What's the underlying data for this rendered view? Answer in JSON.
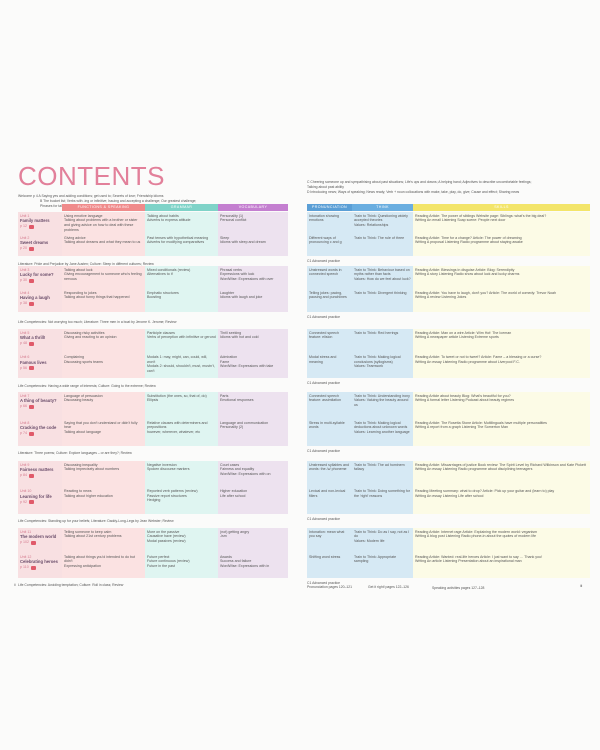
{
  "title": "CONTENTS",
  "intro_left": [
    "Welcome p 4   A Saying yes and adding conditions; get used to; Secrets of love; Friendship idioms",
    "B The bucket list; Verbs with -ing or infinitive; Issuing and accepting a challenge; Our greatest challenge;",
    "Phrases for talking about the future"
  ],
  "intro_right": [
    "C Cheering someone up and sympathising about past situations; Life's ups and downs; A helping hand; Adjectives to describe uncomfortable feelings;",
    "Talking about past ability",
    "D Introducing news; Ways of speaking; News ready; Verb + noun collocations with make, take, play, do, give; Cause and effect; Sharing news"
  ],
  "headers": {
    "functions": "FUNCTIONS & SPEAKING",
    "grammar": "GRAMMAR",
    "vocabulary": "VOCABULARY",
    "pronunciation": "PRONUNCIATION",
    "theme": "THINK",
    "skills": "SKILLS"
  },
  "colors": {
    "title": "#e2809a",
    "functions": "#f08b8b",
    "grammar": "#7fd3c8",
    "vocabulary": "#c47fd0",
    "pronunciation": "#5b9fd6",
    "theme": "#5b9fd6",
    "skills": "#f3e56a"
  },
  "groups": [
    {
      "units": [
        {
          "label": "Unit 1",
          "name": "Family matters",
          "page": "p 12",
          "functions": [
            "Using emotive language",
            "Talking about problems with a brother or sister and giving advice on how to deal with these problems"
          ],
          "grammar": [
            "Talking about habits",
            "Adverbs to express attitude"
          ],
          "vocabulary": [
            "Personality (1)",
            "Personal conflict"
          ],
          "pronunciation": "Intonation showing emotions",
          "theme": [
            "Train to Think: Questioning widely accepted theories",
            "Values: Relationships"
          ],
          "skills": [
            "Reading Article: The power of siblings   Website page: Siblings: what's the big deal?",
            "Writing An email   Listening Soap scene: People next door"
          ]
        },
        {
          "label": "Unit 2",
          "name": "Sweet dreams",
          "page": "p 20",
          "functions": [
            "Giving advice",
            "Talking about dreams and what they mean to us"
          ],
          "grammar": [
            "Past tenses with hypothetical meaning",
            "Adverbs for modifying comparatives"
          ],
          "vocabulary": [
            "Sleep",
            "Idioms with sleep and dream"
          ],
          "pronunciation": "Different ways of pronouncing c and g",
          "theme": [
            "Train to Think: The rule of three"
          ],
          "skills": [
            "Reading Article: Time for a change?   Article: The power of dreaming",
            "Writing A proposal   Listening Radio programme about staying awake"
          ]
        }
      ],
      "line": "Literature: Pride and Prejudice by Jane Austen; Culture: Sleep in different cultures; Review"
    },
    {
      "units": [
        {
          "label": "Unit 3",
          "name": "Lucky for some?",
          "page": "p 30",
          "functions": [
            "Talking about luck",
            "Giving encouragement to someone who's feeling nervous"
          ],
          "grammar": [
            "Mixed conditionals (review)",
            "Alternatives to if"
          ],
          "vocabulary": [
            "Phrasal verbs",
            "Expressions with luck",
            "WordWise: Expressions with over"
          ],
          "pronunciation": "Unstressed words in connected speech",
          "theme": [
            "Train to Think: Behaviour based on myths rather than facts",
            "Values: How do we feel about luck?"
          ],
          "skills": [
            "Reading Article: Blessings in disguise   Article: Blog: Serendipity",
            "Writing A story   Listening Radio show about luck and lucky charms"
          ]
        },
        {
          "label": "Unit 4",
          "name": "Having a laugh",
          "page": "p 38",
          "functions": [
            "Responding to jokes",
            "Talking about funny things that happened"
          ],
          "grammar": [
            "Emphatic structures",
            "Boosting"
          ],
          "vocabulary": [
            "Laughter",
            "Idioms with laugh and joke"
          ],
          "pronunciation": "Telling jokes: pacing, pausing and punchlines",
          "theme": [
            "Train to Think: Divergent thinking"
          ],
          "skills": [
            "Reading Article: You have to laugh, don't you?   Article: The world of comedy: Trevor Noah",
            "Writing A review   Listening Jokes"
          ]
        }
      ],
      "line": "Life Competencies: Not worrying too much; Literature: Three men in a boat by Jerome K. Jerome; Review"
    },
    {
      "units": [
        {
          "label": "Unit 5",
          "name": "What a thrill!",
          "page": "p 48",
          "functions": [
            "Discussing risky activities",
            "Giving and reacting to an opinion"
          ],
          "grammar": [
            "Participle clauses",
            "Verbs of perception with infinitive or gerund"
          ],
          "vocabulary": [
            "Thrill seeking",
            "Idioms with hot and cold"
          ],
          "pronunciation": "Connected speech feature: elision",
          "theme": [
            "Train to Think: Red herrings"
          ],
          "skills": [
            "Reading Article: Man on a wire   Article: Wim Hof: The Iceman",
            "Writing A newspaper article   Listening Extreme sports"
          ]
        },
        {
          "label": "Unit 6",
          "name": "Famous lives",
          "page": "p 56",
          "functions": [
            "Complaining",
            "Discussing sports teams"
          ],
          "grammar": [
            "Modals 1: may, might, can, could, will, won't",
            "Modals 2: should, shouldn't, must, mustn't, can't"
          ],
          "vocabulary": [
            "Admiration",
            "Fame",
            "WordWise: Expressions with take"
          ],
          "pronunciation": "Modal stress and meaning",
          "theme": [
            "Train to Think: Making logical conclusions (syllogisms)",
            "Values: Teamwork"
          ],
          "skills": [
            "Reading Article: To tweet or not to tweet?   Article: Fame – a blessing or a curse?",
            "Writing An essay   Listening Radio programme about Liverpool F.C."
          ]
        }
      ],
      "line": "Life Competencies: Having a wide range of interests; Culture: Going to the extreme; Review"
    },
    {
      "units": [
        {
          "label": "Unit 7",
          "name": "A thing of beauty?",
          "page": "p 66",
          "functions": [
            "Language of persuasion",
            "Discussing beauty"
          ],
          "grammar": [
            "Substitution (the ones, so, that of, do)",
            "Ellipsis"
          ],
          "vocabulary": [
            "Parts",
            "Emotional responses"
          ],
          "pronunciation": "Connected speech feature: assimilation",
          "theme": [
            "Train to Think: Understanding irony",
            "Values: Valuing the beauty around us"
          ],
          "skills": [
            "Reading Article about beauty   Blog: What's beautiful for you?",
            "Writing A formal letter   Listening Podcast about beauty regimes"
          ]
        },
        {
          "label": "Unit 8",
          "name": "Cracking the code",
          "page": "p 74",
          "functions": [
            "Saying that you don't understand or didn't fully hear",
            "Talking about language"
          ],
          "grammar": [
            "Relative clauses with determiners and prepositions",
            "however, wherever, whatever, etc"
          ],
          "vocabulary": [
            "Language and communication",
            "Personality (2)"
          ],
          "pronunciation": "Stress in multi-syllable words",
          "theme": [
            "Train to Think: Making logical deductions about unknown words",
            "Values: Learning another language"
          ],
          "skills": [
            "Reading Article: The Rosetta Stone   Article: Multilinguals have multiple personalities",
            "Writing A report from a graph   Listening The Somerton Man"
          ]
        }
      ],
      "line": "Literature: Three poems; Culture: Explore languages – or are they?; Review"
    },
    {
      "units": [
        {
          "label": "Unit 9",
          "name": "Fairness matters",
          "page": "p 84",
          "functions": [
            "Discussing inequality",
            "Talking imprecisely about numbers"
          ],
          "grammar": [
            "Negative inversion",
            "Spoken discourse markers"
          ],
          "vocabulary": [
            "Court cases",
            "Fairness and equality",
            "WordWise: Expressions with on"
          ],
          "pronunciation": "Unstressed syllables and words: the /ə/ phoneme",
          "theme": [
            "Train to Think: The ad hominem fallacy"
          ],
          "skills": [
            "Reading Article: Miscarriages of justice   Book review: The Spirit Level by Richard Wilkinson and Kate Pickett",
            "Writing An essay   Listening Radio programme about disciplining teenagers"
          ]
        },
        {
          "label": "Unit 10",
          "name": "Learning for life",
          "page": "p 92",
          "functions": [
            "Reacting to news",
            "Talking about higher education"
          ],
          "grammar": [
            "Reported verb patterns (review)",
            "Passive report structures",
            "Hedging"
          ],
          "vocabulary": [
            "Higher education",
            "Life after school"
          ],
          "pronunciation": "Lexical and non-lexical fillers",
          "theme": [
            "Train to Think: Doing something for the 'right' reasons"
          ],
          "skills": [
            "Reading Meeting summary: what to drop?   Article: Pick up your guitar and (learn to) play",
            "Writing An essay   Listening Life after school"
          ]
        }
      ],
      "line": "Life Competencies: Standing up for your beliefs; Literature: Daddy-Long-Legs by Jean Webster; Review"
    },
    {
      "units": [
        {
          "label": "Unit 11",
          "name": "The modern world",
          "page": "p 102",
          "functions": [
            "Telling someone to keep calm",
            "Talking about 21st century problems"
          ],
          "grammar": [
            "More on the passive",
            "Causative have (review)",
            "Modal passives (review)"
          ],
          "vocabulary": [
            "(not) getting angry",
            "-ism"
          ],
          "pronunciation": "Intonation: mean what you say",
          "theme": [
            "Train to Think: Do as I say, not as I do",
            "Values: Modern life"
          ],
          "skills": [
            "Reading Article: Internet rage   Article: Explaining the modern world: veganism",
            "Writing A blog post   Listening Radio phone-in about the quotes of modern life"
          ]
        },
        {
          "label": "Unit 12",
          "name": "Celebrating heroes",
          "page": "p 110",
          "functions": [
            "Talking about things you'd intended to do but didn't",
            "Expressing anticipation"
          ],
          "grammar": [
            "Future perfect",
            "Future continuous (review)",
            "Future in the past"
          ],
          "vocabulary": [
            "Awards",
            "Success and failure",
            "WordWise: Expressions with in"
          ],
          "pronunciation": "Shifting word stress",
          "theme": [
            "Train to Think: Appropriate sampling"
          ],
          "skills": [
            "Reading Article: Wanted: real-life heroes   Article: I just want to say … Thank you!",
            "Writing An article   Listening Presentation about an inspirational man"
          ]
        }
      ],
      "line": "Life Competencies: Avoiding temptation; Culture: Roll in class; Review"
    }
  ],
  "advanced": "C1 Advanced practice",
  "footer": [
    "Pronunciation pages 120–121",
    "Get it right! pages 122–126",
    "Speaking activities pages 127–128"
  ],
  "page_left": "ii",
  "page_right": "iii"
}
